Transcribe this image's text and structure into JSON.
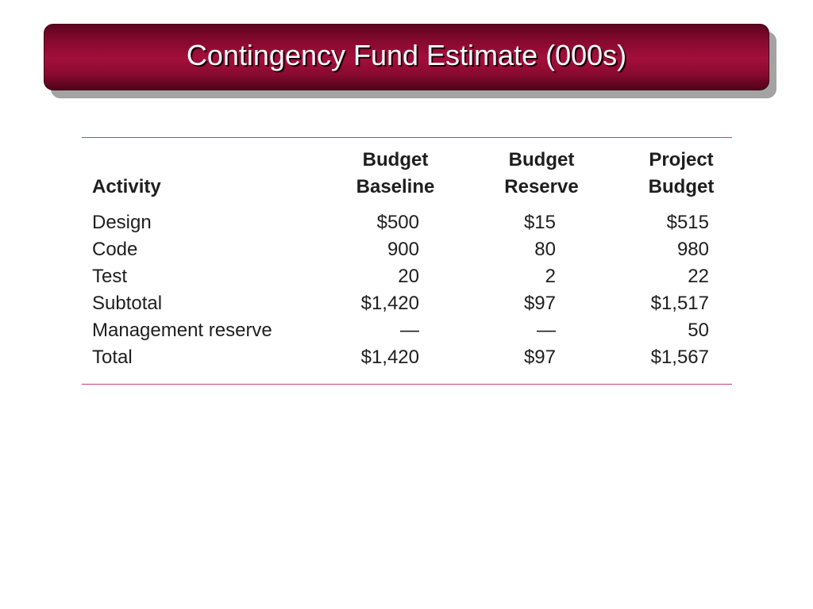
{
  "slide": {
    "title": "Contingency Fund Estimate (000s)"
  },
  "table": {
    "headers": {
      "activity": "Activity",
      "baseline_line1": "Budget",
      "baseline_line2": "Baseline",
      "reserve_line1": "Budget",
      "reserve_line2": "Reserve",
      "project_line1": "Project",
      "project_line2": "Budget"
    },
    "rows": [
      {
        "activity": "Design",
        "baseline": "$500",
        "reserve": "$15",
        "project": "$515"
      },
      {
        "activity": "Code",
        "baseline": "900",
        "reserve": "80",
        "project": "980"
      },
      {
        "activity": "Test",
        "baseline": "20",
        "reserve": "2",
        "project": "22"
      },
      {
        "activity": "Subtotal",
        "baseline": "$1,420",
        "reserve": "$97",
        "project": "$1,517"
      },
      {
        "activity": "Management reserve",
        "baseline": "—",
        "reserve": "—",
        "project": "50"
      },
      {
        "activity": "Total",
        "baseline": "$1,420",
        "reserve": "$97",
        "project": "$1,567"
      }
    ]
  },
  "colors": {
    "banner": "#8a0a30",
    "rule": "#c0407a"
  }
}
